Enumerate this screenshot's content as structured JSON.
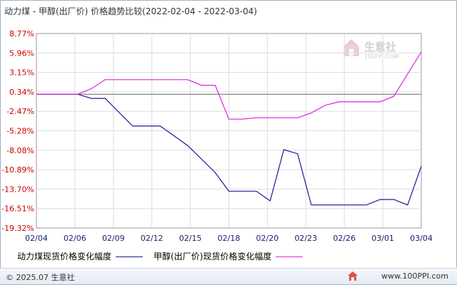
{
  "header": {
    "title": "动力煤 - 甲醇(出厂价) 价格趋势比较(2022-02-04 - 2022-03-04)"
  },
  "watermark": {
    "text": "生意社",
    "sub": "100PPI.COM"
  },
  "footer": {
    "copyright": "© 2025.07 生意社",
    "url": "www.100PPI.com"
  },
  "colors": {
    "coal": "#1a1a99",
    "methanol": "#dd22dd",
    "zero_line": "#666666",
    "grid": "#dcdcdc",
    "axis_text": "#cc0000",
    "x_text": "#1a1a6e"
  },
  "chart_data": {
    "type": "line",
    "title": "动力煤 - 甲醇(出厂价) 价格趋势比较(2022-02-04 - 2022-03-04)",
    "xlabel": "",
    "ylabel": "",
    "x_ticks": [
      "02/04",
      "02/06",
      "02/09",
      "02/12",
      "02/15",
      "02/18",
      "02/20",
      "02/23",
      "02/26",
      "03/01",
      "03/04"
    ],
    "y_ticks": [
      "8.77%",
      "5.96%",
      "3.15%",
      "0.34%",
      "-2.47%",
      "-5.28%",
      "-8.08%",
      "-10.89%",
      "-13.70%",
      "-16.51%",
      "-19.32%"
    ],
    "ylim": [
      -19.32,
      8.77
    ],
    "xlim": [
      "2022-02-04",
      "2022-03-04"
    ],
    "grid": true,
    "legend_position": "bottom",
    "series": [
      {
        "name": "动力煤现货价格变化幅度",
        "color": "#1a1a99",
        "points": [
          {
            "x": "2022-02-04",
            "y": 0.0
          },
          {
            "x": "2022-02-07",
            "y": 0.0
          },
          {
            "x": "2022-02-08",
            "y": -0.6
          },
          {
            "x": "2022-02-09",
            "y": -0.6
          },
          {
            "x": "2022-02-11",
            "y": -4.6
          },
          {
            "x": "2022-02-13",
            "y": -4.6
          },
          {
            "x": "2022-02-15",
            "y": -7.4
          },
          {
            "x": "2022-02-17",
            "y": -11.3
          },
          {
            "x": "2022-02-18",
            "y": -14.0
          },
          {
            "x": "2022-02-20",
            "y": -14.0
          },
          {
            "x": "2022-02-21",
            "y": -15.4
          },
          {
            "x": "2022-02-22",
            "y": -8.0
          },
          {
            "x": "2022-02-23",
            "y": -8.6
          },
          {
            "x": "2022-02-24",
            "y": -16.0
          },
          {
            "x": "2022-02-28",
            "y": -16.0
          },
          {
            "x": "2022-03-01",
            "y": -15.2
          },
          {
            "x": "2022-03-02",
            "y": -15.2
          },
          {
            "x": "2022-03-03",
            "y": -16.0
          },
          {
            "x": "2022-03-04",
            "y": -10.4
          },
          {
            "x": "2022-03-05",
            "y": -10.4
          }
        ]
      },
      {
        "name": "甲醇(出厂价)现货价格变化幅度",
        "color": "#dd22dd",
        "points": [
          {
            "x": "2022-02-04",
            "y": 0.0
          },
          {
            "x": "2022-02-07",
            "y": 0.0
          },
          {
            "x": "2022-02-08",
            "y": 0.8
          },
          {
            "x": "2022-02-09",
            "y": 2.1
          },
          {
            "x": "2022-02-13",
            "y": 2.1
          },
          {
            "x": "2022-02-15",
            "y": 2.1
          },
          {
            "x": "2022-02-16",
            "y": 1.3
          },
          {
            "x": "2022-02-17",
            "y": 1.3
          },
          {
            "x": "2022-02-18",
            "y": -3.6
          },
          {
            "x": "2022-02-19",
            "y": -3.6
          },
          {
            "x": "2022-02-20",
            "y": -3.4
          },
          {
            "x": "2022-02-23",
            "y": -3.4
          },
          {
            "x": "2022-02-24",
            "y": -2.7
          },
          {
            "x": "2022-02-25",
            "y": -1.6
          },
          {
            "x": "2022-02-26",
            "y": -1.1
          },
          {
            "x": "2022-02-28",
            "y": -1.1
          },
          {
            "x": "2022-03-01",
            "y": -1.1
          },
          {
            "x": "2022-03-02",
            "y": -0.3
          },
          {
            "x": "2022-03-04",
            "y": 6.1
          },
          {
            "x": "2022-03-05",
            "y": 6.1
          }
        ]
      }
    ]
  }
}
